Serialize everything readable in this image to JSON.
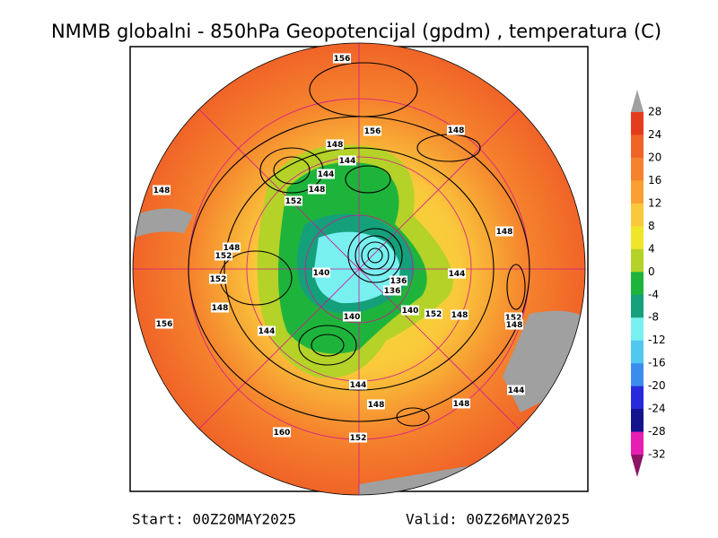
{
  "title": "NMMB globalni - 850hPa Geopotencijal (gpdm) , temperatura (C)",
  "colorbar": {
    "labels": [
      28,
      24,
      20,
      16,
      12,
      8,
      4,
      0,
      -4,
      -8,
      -12,
      -16,
      -20,
      -24,
      -28,
      -32
    ],
    "colors": [
      "#a0a0a0",
      "#e63c1e",
      "#f06428",
      "#f5822d",
      "#faa032",
      "#fac83c",
      "#f0e628",
      "#b4d228",
      "#1eb43c",
      "#14a07a",
      "#78f0f0",
      "#50c8f0",
      "#3c8cf0",
      "#2828dc",
      "#14148c",
      "#e61eb4",
      "#8c1464"
    ]
  },
  "contour_labels": [
    156,
    156,
    148,
    148,
    144,
    144,
    148,
    152,
    148,
    148,
    148,
    152,
    140,
    136,
    136,
    144,
    152,
    148,
    140,
    152,
    148,
    152,
    148,
    140,
    156,
    144,
    144,
    144,
    148,
    148,
    160,
    152
  ],
  "footer": {
    "start": "Start: 00Z20MAY2025",
    "valid": "Valid: 00Z26MAY2025"
  }
}
